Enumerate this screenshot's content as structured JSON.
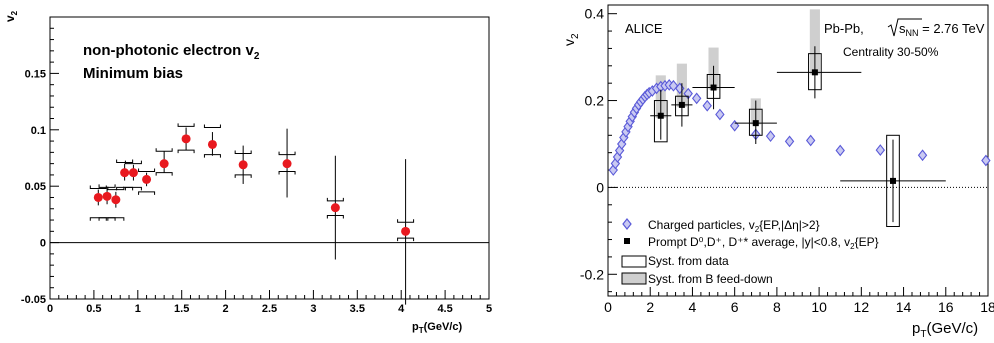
{
  "chart_data": [
    {
      "type": "scatter",
      "ylabel": "v",
      "ylabel_sub": "2",
      "xlabel": "p",
      "xlabel_sub": "T",
      "xlabel_unit": "(GeV/c)",
      "xlim": [
        0,
        5
      ],
      "ylim": [
        -0.05,
        0.2
      ],
      "x_ticks": [
        "0",
        "0.5",
        "1",
        "1.5",
        "2",
        "2.5",
        "3",
        "3.5",
        "4",
        "4.5",
        "5"
      ],
      "y_ticks": [
        "-0.05",
        "0",
        "0.05",
        "0.1",
        "0.15"
      ],
      "y_tick_values": [
        -0.05,
        0,
        0.05,
        0.1,
        0.15
      ],
      "annotations": {
        "line1": "non-photonic electron v",
        "line1_sub": "2",
        "line2": "Minimum bias"
      },
      "colors": {
        "marker": "#e8191f"
      },
      "series": [
        {
          "points": [
            {
              "x": 0.55,
              "y": 0.04,
              "lo": 0.033,
              "hi": 0.047,
              "slo": 0.022,
              "shi": 0.048
            },
            {
              "x": 0.65,
              "y": 0.041,
              "lo": 0.034,
              "hi": 0.048,
              "slo": 0.022,
              "shi": 0.049
            },
            {
              "x": 0.75,
              "y": 0.038,
              "lo": 0.031,
              "hi": 0.045,
              "slo": 0.022,
              "shi": 0.047
            },
            {
              "x": 0.85,
              "y": 0.062,
              "lo": 0.055,
              "hi": 0.07,
              "slo": 0.049,
              "shi": 0.071
            },
            {
              "x": 0.95,
              "y": 0.062,
              "lo": 0.055,
              "hi": 0.069,
              "slo": 0.049,
              "shi": 0.07
            },
            {
              "x": 1.1,
              "y": 0.056,
              "lo": 0.05,
              "hi": 0.062,
              "slo": 0.045,
              "shi": 0.063
            },
            {
              "x": 1.3,
              "y": 0.07,
              "lo": 0.062,
              "hi": 0.081,
              "slo": 0.062,
              "shi": 0.081
            },
            {
              "x": 1.55,
              "y": 0.092,
              "lo": 0.082,
              "hi": 0.102,
              "slo": 0.082,
              "shi": 0.103
            },
            {
              "x": 1.85,
              "y": 0.087,
              "lo": 0.077,
              "hi": 0.098,
              "slo": 0.078,
              "shi": 0.102
            },
            {
              "x": 2.2,
              "y": 0.069,
              "lo": 0.052,
              "hi": 0.086,
              "slo": 0.06,
              "shi": 0.079
            },
            {
              "x": 2.7,
              "y": 0.07,
              "lo": 0.04,
              "hi": 0.101,
              "slo": 0.063,
              "shi": 0.078
            },
            {
              "x": 3.25,
              "y": 0.031,
              "lo": -0.015,
              "hi": 0.077,
              "slo": 0.024,
              "shi": 0.037
            },
            {
              "x": 4.05,
              "y": 0.01,
              "lo": -0.055,
              "hi": 0.074,
              "slo": 0.004,
              "shi": 0.018
            }
          ]
        }
      ]
    },
    {
      "type": "scatter",
      "ylabel": "v",
      "ylabel_sub": "2",
      "xlabel": "p",
      "xlabel_sub": "T",
      "xlabel_unit": "(GeV/c)",
      "xlim": [
        0,
        18
      ],
      "ylim": [
        -0.25,
        0.42
      ],
      "x_ticks": [
        "0",
        "2",
        "4",
        "6",
        "8",
        "10",
        "12",
        "14",
        "16",
        "18"
      ],
      "y_ticks": [
        "-0.2",
        "0",
        "0.2",
        "0.4"
      ],
      "y_tick_values": [
        -0.2,
        0,
        0.2,
        0.4
      ],
      "annotations": {
        "experiment": "ALICE",
        "system": "Pb-Pb, ",
        "sqrt_symbol": "s",
        "sqrt_sub": "NN",
        "energy": " = 2.76 TeV",
        "centrality": "Centrality 30-50%"
      },
      "legend": {
        "placement": "bottom-left",
        "entries": [
          {
            "text": "Charged particles, v",
            "sub": "2",
            "tail": "{EP,|Δη|>2}"
          },
          {
            "text": "Prompt D⁰,D⁺, D⁺* average, |y|<0.8, v",
            "sub": "2",
            "tail": "{EP}"
          },
          {
            "text": "Syst. from data"
          },
          {
            "text": "Syst. from B feed-down"
          }
        ]
      },
      "colors": {
        "charged": "#5a5ad8",
        "feeddown": "#cfcfcf"
      },
      "series": [
        {
          "name": "Charged particles, v2{EP,|Δη|>2}",
          "points": [
            {
              "x": 0.25,
              "y": 0.04
            },
            {
              "x": 0.35,
              "y": 0.055
            },
            {
              "x": 0.45,
              "y": 0.07
            },
            {
              "x": 0.55,
              "y": 0.085
            },
            {
              "x": 0.65,
              "y": 0.1
            },
            {
              "x": 0.75,
              "y": 0.115
            },
            {
              "x": 0.85,
              "y": 0.128
            },
            {
              "x": 0.95,
              "y": 0.14
            },
            {
              "x": 1.05,
              "y": 0.152
            },
            {
              "x": 1.15,
              "y": 0.163
            },
            {
              "x": 1.25,
              "y": 0.173
            },
            {
              "x": 1.35,
              "y": 0.182
            },
            {
              "x": 1.45,
              "y": 0.19
            },
            {
              "x": 1.55,
              "y": 0.197
            },
            {
              "x": 1.65,
              "y": 0.203
            },
            {
              "x": 1.75,
              "y": 0.209
            },
            {
              "x": 1.85,
              "y": 0.214
            },
            {
              "x": 1.95,
              "y": 0.218
            },
            {
              "x": 2.1,
              "y": 0.222
            },
            {
              "x": 2.3,
              "y": 0.228
            },
            {
              "x": 2.5,
              "y": 0.232
            },
            {
              "x": 2.7,
              "y": 0.234
            },
            {
              "x": 2.9,
              "y": 0.236
            },
            {
              "x": 3.1,
              "y": 0.234
            },
            {
              "x": 3.4,
              "y": 0.228
            },
            {
              "x": 3.8,
              "y": 0.216
            },
            {
              "x": 4.2,
              "y": 0.205
            },
            {
              "x": 4.7,
              "y": 0.188
            },
            {
              "x": 5.3,
              "y": 0.168
            },
            {
              "x": 6.0,
              "y": 0.142
            },
            {
              "x": 7.0,
              "y": 0.122
            },
            {
              "x": 7.7,
              "y": 0.118
            },
            {
              "x": 8.6,
              "y": 0.106
            },
            {
              "x": 9.6,
              "y": 0.108
            },
            {
              "x": 11.0,
              "y": 0.085
            },
            {
              "x": 12.9,
              "y": 0.086
            },
            {
              "x": 14.9,
              "y": 0.074
            },
            {
              "x": 17.9,
              "y": 0.062
            }
          ]
        },
        {
          "name": "Prompt D0,D+,D*+ average, |y|<0.8, v2{EP}",
          "points": [
            {
              "x": 2.5,
              "y": 0.165,
              "xlo": 2.0,
              "xhi": 3.0,
              "lo": 0.11,
              "hi": 0.225,
              "slo": 0.105,
              "shi": 0.2,
              "fdlo": 0.16,
              "fdhi": 0.258,
              "bw": 0.6
            },
            {
              "x": 3.5,
              "y": 0.19,
              "xlo": 3.0,
              "xhi": 4.0,
              "lo": 0.14,
              "hi": 0.24,
              "slo": 0.165,
              "shi": 0.21,
              "fdlo": 0.185,
              "fdhi": 0.285,
              "bw": 0.6
            },
            {
              "x": 5.0,
              "y": 0.23,
              "xlo": 4.0,
              "xhi": 6.0,
              "lo": 0.18,
              "hi": 0.28,
              "slo": 0.205,
              "shi": 0.26,
              "fdlo": 0.225,
              "fdhi": 0.322,
              "bw": 0.6
            },
            {
              "x": 7.0,
              "y": 0.148,
              "xlo": 6.0,
              "xhi": 8.0,
              "lo": 0.1,
              "hi": 0.2,
              "slo": 0.12,
              "shi": 0.18,
              "fdlo": 0.145,
              "fdhi": 0.205,
              "bw": 0.6
            },
            {
              "x": 9.8,
              "y": 0.265,
              "xlo": 8.0,
              "xhi": 12.0,
              "lo": 0.205,
              "hi": 0.325,
              "slo": 0.225,
              "shi": 0.308,
              "fdlo": 0.26,
              "fdhi": 0.41,
              "bw": 0.6
            },
            {
              "x": 13.5,
              "y": 0.015,
              "xlo": 11.0,
              "xhi": 16.0,
              "lo": -0.08,
              "hi": 0.11,
              "slo": -0.09,
              "shi": 0.12,
              "fdlo": 0.015,
              "fdhi": 0.015,
              "bw": 0.6
            }
          ]
        }
      ]
    }
  ]
}
